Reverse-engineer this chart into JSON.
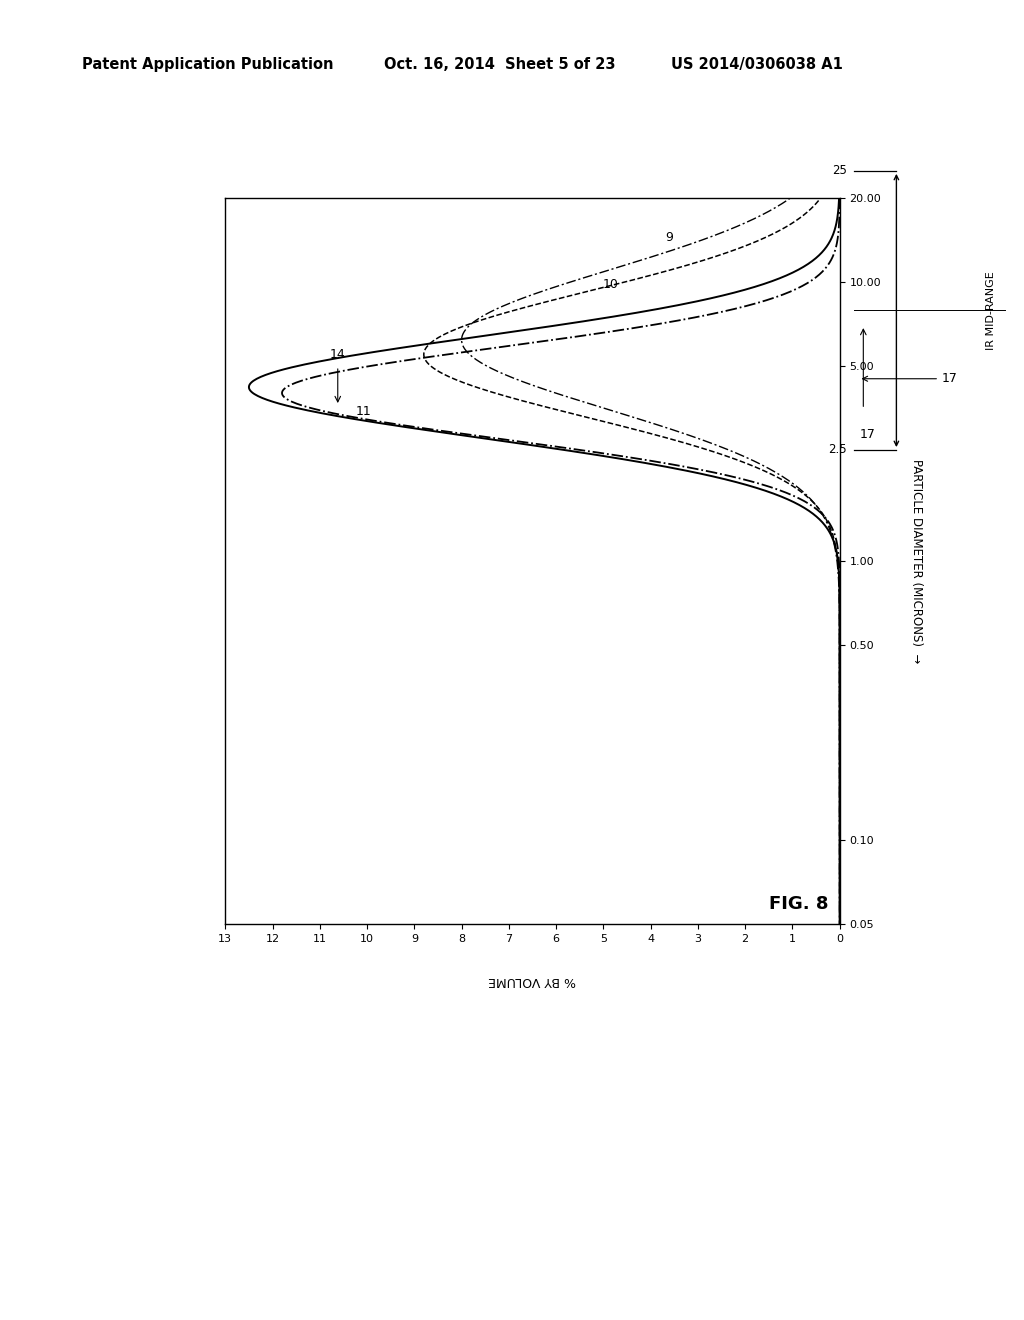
{
  "header_left": "Patent Application Publication",
  "header_mid": "Oct. 16, 2014  Sheet 5 of 23",
  "header_right": "US 2014/0306038 A1",
  "fig_label": "FIG. 8",
  "xlabel": "% BY VOLUME",
  "ylabel": "PARTICLE DIAMETER (MICRONS)",
  "ir_mid_range_label": "IR MID-RANGE",
  "background_color": "#ffffff",
  "header_fontsize": 10.5,
  "x_tick_labels": [
    "0",
    "1",
    "2",
    "3",
    "4",
    "5",
    "6",
    "7",
    "8",
    "9",
    "10",
    "11",
    "12",
    "13"
  ],
  "y_tick_values": [
    0.05,
    0.1,
    0.5,
    1.0,
    5.0,
    10.0,
    20.0
  ],
  "y_tick_labels": [
    "0.05",
    "0.10",
    "0.50",
    "1.00",
    "5.00",
    "10.00",
    "20.00"
  ],
  "ir_low": 2.5,
  "ir_high": 25.0,
  "curve11_mu": 4.2,
  "curve11_sig": 0.42,
  "curve11_scale": 12.5,
  "curve14_mu": 4.0,
  "curve14_sig": 0.38,
  "curve14_scale": 11.8,
  "curve10_mu": 5.5,
  "curve10_sig": 0.52,
  "curve10_scale": 8.8,
  "curve9_mu": 6.2,
  "curve9_sig": 0.58,
  "curve9_scale": 8.0
}
